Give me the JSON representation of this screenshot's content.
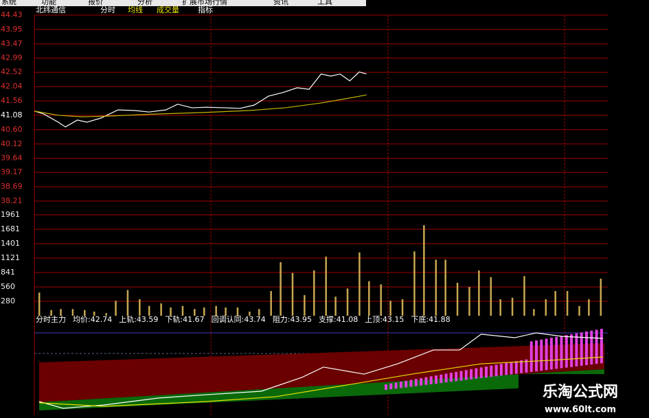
{
  "menu": [
    "系统",
    "功能",
    "报价",
    "分析",
    "扩展市场行情",
    "资讯",
    "工具"
  ],
  "header": {
    "stock": "北纬通信",
    "tabs": [
      "分时",
      "均线",
      "成交量",
      "指标"
    ]
  },
  "watermark": {
    "title": "乐淘公式网",
    "url": "www.60lt.com"
  },
  "chart_data": [
    {
      "type": "line",
      "xlim": [
        0,
        240
      ],
      "ylim": [
        38.21,
        44.43
      ],
      "yticks": [
        {
          "value": 44.43,
          "label": "44.43"
        },
        {
          "value": 43.95,
          "label": "43.95"
        },
        {
          "value": 43.47,
          "label": "43.47"
        },
        {
          "value": 42.99,
          "label": "42.99"
        },
        {
          "value": 42.52,
          "label": "42.52"
        },
        {
          "value": 42.04,
          "label": "42.04"
        },
        {
          "value": 41.56,
          "label": "41.56"
        },
        {
          "value": 41.08,
          "label": "41.08"
        },
        {
          "value": 40.6,
          "label": "40.60"
        },
        {
          "value": 40.12,
          "label": "40.12"
        },
        {
          "value": 39.64,
          "label": "39.64"
        },
        {
          "value": 39.17,
          "label": "39.17"
        },
        {
          "value": 38.69,
          "label": "38.69"
        },
        {
          "value": 38.21,
          "label": "38.21"
        }
      ],
      "grid": true,
      "series": [
        {
          "color": "#ffffff",
          "x": [
            0,
            4,
            10,
            13,
            18,
            22,
            28,
            35,
            42,
            48,
            55,
            60,
            66,
            72,
            80,
            86,
            92,
            98,
            104,
            110,
            115,
            120,
            124,
            128,
            132,
            136,
            139
          ],
          "values": [
            41.22,
            41.12,
            40.85,
            40.69,
            40.92,
            40.85,
            40.99,
            41.26,
            41.24,
            41.19,
            41.26,
            41.45,
            41.33,
            41.35,
            41.33,
            41.31,
            41.42,
            41.72,
            41.84,
            42.0,
            41.95,
            42.46,
            42.39,
            42.46,
            42.23,
            42.53,
            42.46
          ]
        },
        {
          "color": "#c8b400",
          "x": [
            0,
            10,
            20,
            30,
            50,
            70,
            90,
            105,
            120,
            130,
            139
          ],
          "values": [
            41.22,
            41.08,
            41.03,
            41.05,
            41.12,
            41.17,
            41.24,
            41.33,
            41.49,
            41.63,
            41.76
          ]
        }
      ]
    },
    {
      "type": "bar",
      "xlim": [
        0,
        240
      ],
      "ylim": [
        0,
        1961
      ],
      "yticks": [
        1961,
        1681,
        1401,
        1121,
        841,
        560,
        280
      ],
      "grid": true,
      "color": "#c8a850",
      "x": [
        2,
        7,
        11,
        16,
        21,
        25,
        30,
        34,
        39,
        44,
        48,
        53,
        57,
        62,
        67,
        71,
        76,
        80,
        85,
        90,
        94,
        99,
        103,
        108,
        113,
        117,
        122,
        126,
        131,
        136,
        140,
        145,
        149,
        154,
        159,
        163,
        168,
        172,
        177,
        182,
        186,
        191,
        195,
        200,
        205,
        209,
        214,
        218,
        223,
        228,
        232,
        237
      ],
      "values": [
        450,
        110,
        130,
        130,
        110,
        80,
        50,
        290,
        500,
        320,
        190,
        240,
        160,
        190,
        130,
        160,
        190,
        160,
        160,
        80,
        130,
        480,
        1040,
        830,
        400,
        880,
        1150,
        370,
        530,
        1230,
        670,
        610,
        290,
        320,
        1250,
        1760,
        1090,
        1090,
        640,
        560,
        880,
        750,
        320,
        350,
        770,
        130,
        320,
        480,
        480,
        190,
        320,
        720
      ]
    },
    {
      "type": "line",
      "xlim": [
        0,
        240
      ],
      "ylim": [
        40.4,
        44.0
      ],
      "legend_items": [
        "分时主力",
        "均价:42.74",
        "上轨:43.59",
        "下轨:41.67",
        "回调认同:43.74",
        "阻力:43.95",
        "支撑:41.08",
        "上顶:43.15",
        "下底:41.88"
      ],
      "series": [
        {
          "color": "#ffffff",
          "x": [
            2,
            12,
            29,
            52,
            72,
            95,
            112,
            121,
            138,
            152,
            167,
            178,
            187,
            201,
            210,
            221,
            238
          ],
          "values": [
            40.87,
            40.56,
            40.71,
            41.03,
            41.18,
            41.34,
            41.97,
            42.44,
            42.12,
            42.59,
            43.22,
            43.22,
            43.94,
            43.78,
            44.0,
            43.84,
            43.75
          ]
        },
        {
          "color": "#e8e000",
          "x": [
            2,
            29,
            72,
            101,
            129,
            158,
            187,
            216,
            238
          ],
          "values": [
            40.81,
            40.65,
            40.87,
            41.09,
            41.59,
            42.12,
            42.59,
            42.75,
            42.9
          ]
        }
      ]
    }
  ]
}
